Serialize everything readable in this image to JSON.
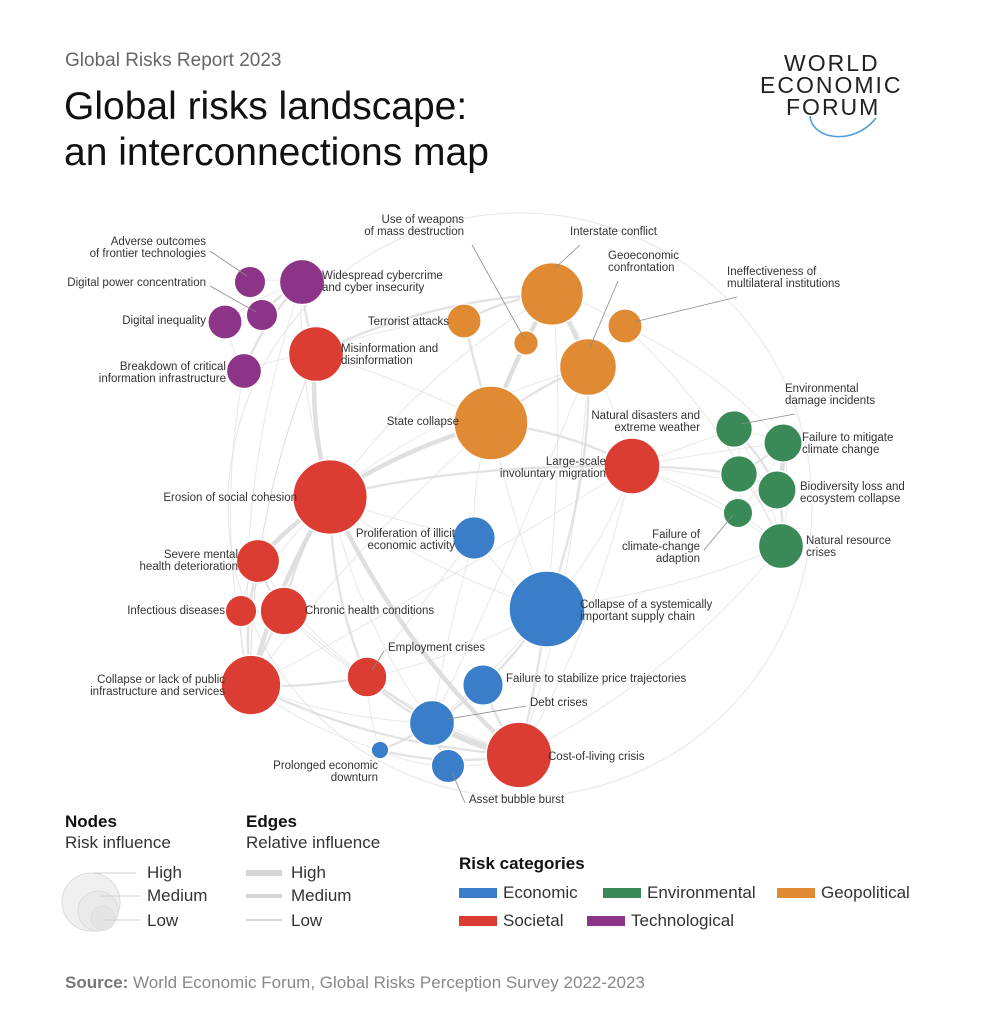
{
  "header": {
    "report_name": "Global Risks Report 2023",
    "title_line1": "Global risks landscape:",
    "title_line2": "an interconnections map"
  },
  "logo": {
    "line1": "WORLD",
    "line2": "ECONOMIC",
    "line3": "FORUM"
  },
  "colors": {
    "Economic": "#3a7dc9",
    "Environmental": "#3a8a58",
    "Geopolitical": "#e08a33",
    "Societal": "#dc3d33",
    "Technological": "#8c3487",
    "edge": "#d9d9d9"
  },
  "nodes": [
    {
      "id": "adverse",
      "label": [
        "Adverse outcomes",
        "of frontier technologies"
      ],
      "category": "Technological",
      "influence": 0.12
    },
    {
      "id": "cyber",
      "label": [
        "Widespread cybercrime",
        "and cyber insecurity"
      ],
      "category": "Technological",
      "influence": 0.3
    },
    {
      "id": "digpower",
      "label": [
        "Digital power concentration"
      ],
      "category": "Technological",
      "influence": 0.12
    },
    {
      "id": "diginequality",
      "label": [
        "Digital inequality"
      ],
      "category": "Technological",
      "influence": 0.15
    },
    {
      "id": "breakdown",
      "label": [
        "Breakdown of critical",
        "information infrastructure"
      ],
      "category": "Technological",
      "influence": 0.16
    },
    {
      "id": "misinfo",
      "label": [
        "Misinformation and",
        "disinformation"
      ],
      "category": "Societal",
      "influence": 0.48
    },
    {
      "id": "wmd",
      "label": [
        "Use of weapons",
        "of mass destruction"
      ],
      "category": "Geopolitical",
      "influence": 0.06
    },
    {
      "id": "interstate",
      "label": [
        "Interstate conflict"
      ],
      "category": "Geopolitical",
      "influence": 0.65
    },
    {
      "id": "geoeco",
      "label": [
        "Geoeconomic",
        "confrontation"
      ],
      "category": "Geopolitical",
      "influence": 0.52
    },
    {
      "id": "terrorist",
      "label": [
        "Terrorist attacks"
      ],
      "category": "Geopolitical",
      "influence": 0.15
    },
    {
      "id": "multilateral",
      "label": [
        "Ineffectiveness of",
        "multilateral institutions"
      ],
      "category": "Geopolitical",
      "influence": 0.15
    },
    {
      "id": "statecollapse",
      "label": [
        "State collapse"
      ],
      "category": "Geopolitical",
      "influence": 0.94
    },
    {
      "id": "migration",
      "label": [
        "Large-scale",
        "involuntary migration"
      ],
      "category": "Societal",
      "influence": 0.5
    },
    {
      "id": "envdamage",
      "label": [
        "Environmental",
        "damage incidents"
      ],
      "category": "Environmental",
      "influence": 0.18
    },
    {
      "id": "natdisasters",
      "label": [
        "Natural disasters and",
        "extreme weather"
      ],
      "category": "Environmental",
      "influence": 0.18
    },
    {
      "id": "climfail",
      "label": [
        "Failure to mitigate",
        "climate change"
      ],
      "category": "Environmental",
      "influence": 0.2
    },
    {
      "id": "biodiversity",
      "label": [
        "Biodiversity loss and",
        "ecosystem collapse"
      ],
      "category": "Environmental",
      "influence": 0.2
    },
    {
      "id": "adaptfail",
      "label": [
        "Failure of",
        "climate-change",
        "adaption"
      ],
      "category": "Environmental",
      "influence": 0.1
    },
    {
      "id": "natres",
      "label": [
        "Natural resource",
        "crises"
      ],
      "category": "Environmental",
      "influence": 0.3
    },
    {
      "id": "cohesion",
      "label": [
        "Erosion of social cohesion"
      ],
      "category": "Societal",
      "influence": 0.96
    },
    {
      "id": "illicit",
      "label": [
        "Proliferation of illicit",
        "economic activity"
      ],
      "category": "Economic",
      "influence": 0.26
    },
    {
      "id": "mental",
      "label": [
        "Severe mental",
        "health deterioration"
      ],
      "category": "Societal",
      "influence": 0.27
    },
    {
      "id": "infectious",
      "label": [
        "Infectious diseases"
      ],
      "category": "Societal",
      "influence": 0.12
    },
    {
      "id": "chronic",
      "label": [
        "Chronic health conditions"
      ],
      "category": "Societal",
      "influence": 0.34
    },
    {
      "id": "supplychain",
      "label": [
        "Collapse of a systemically",
        "important supply chain"
      ],
      "category": "Economic",
      "influence": 1.0
    },
    {
      "id": "employment",
      "label": [
        "Employment crises"
      ],
      "category": "Societal",
      "influence": 0.22
    },
    {
      "id": "publicinfra",
      "label": [
        "Collapse or lack of public",
        "infrastructure and services"
      ],
      "category": "Societal",
      "influence": 0.58
    },
    {
      "id": "price",
      "label": [
        "Failure to stabilize price trajectories"
      ],
      "category": "Economic",
      "influence": 0.23
    },
    {
      "id": "debt",
      "label": [
        "Debt crises"
      ],
      "category": "Economic",
      "influence": 0.3
    },
    {
      "id": "prolonged",
      "label": [
        "Prolonged economic",
        "downturn"
      ],
      "category": "Economic",
      "influence": 0.02
    },
    {
      "id": "costofliving",
      "label": [
        "Cost-of-living crisis"
      ],
      "category": "Societal",
      "influence": 0.72
    },
    {
      "id": "assetbubble",
      "label": [
        "Asset bubble burst"
      ],
      "category": "Economic",
      "influence": 0.14
    }
  ],
  "edges": [
    [
      "cohesion",
      "misinfo",
      3
    ],
    [
      "cohesion",
      "statecollapse",
      3
    ],
    [
      "cohesion",
      "mental",
      3
    ],
    [
      "cohesion",
      "chronic",
      2
    ],
    [
      "cohesion",
      "publicinfra",
      3
    ],
    [
      "cohesion",
      "costofliving",
      3
    ],
    [
      "cohesion",
      "employment",
      2
    ],
    [
      "cohesion",
      "migration",
      2
    ],
    [
      "cohesion",
      "interstate",
      1
    ],
    [
      "cohesion",
      "illicit",
      1
    ],
    [
      "cohesion",
      "debt",
      1
    ],
    [
      "cohesion",
      "cyber",
      1
    ],
    [
      "cohesion",
      "infectious",
      1
    ],
    [
      "cohesion",
      "supplychain",
      1
    ],
    [
      "cohesion",
      "geoeco",
      1
    ],
    [
      "statecollapse",
      "interstate",
      3
    ],
    [
      "statecollapse",
      "geoeco",
      2
    ],
    [
      "statecollapse",
      "migration",
      2
    ],
    [
      "statecollapse",
      "terrorist",
      2
    ],
    [
      "statecollapse",
      "illicit",
      1
    ],
    [
      "statecollapse",
      "supplychain",
      1
    ],
    [
      "statecollapse",
      "misinfo",
      1
    ],
    [
      "statecollapse",
      "wmd",
      1
    ],
    [
      "statecollapse",
      "publicinfra",
      1
    ],
    [
      "interstate",
      "geoeco",
      3
    ],
    [
      "interstate",
      "terrorist",
      2
    ],
    [
      "interstate",
      "wmd",
      1
    ],
    [
      "interstate",
      "multilateral",
      1
    ],
    [
      "interstate",
      "misinfo",
      2
    ],
    [
      "interstate",
      "migration",
      1
    ],
    [
      "interstate",
      "supplychain",
      1
    ],
    [
      "geoeco",
      "supplychain",
      2
    ],
    [
      "geoeco",
      "multilateral",
      1
    ],
    [
      "geoeco",
      "costofliving",
      1
    ],
    [
      "geoeco",
      "debt",
      1
    ],
    [
      "multilateral",
      "natres",
      1
    ],
    [
      "multilateral",
      "climfail",
      1
    ],
    [
      "misinfo",
      "cyber",
      2
    ],
    [
      "misinfo",
      "terrorist",
      1
    ],
    [
      "misinfo",
      "breakdown",
      1
    ],
    [
      "misinfo",
      "publicinfra",
      1
    ],
    [
      "cyber",
      "adverse",
      1
    ],
    [
      "cyber",
      "digpower",
      2
    ],
    [
      "cyber",
      "diginequality",
      1
    ],
    [
      "cyber",
      "breakdown",
      2
    ],
    [
      "adverse",
      "digpower",
      1
    ],
    [
      "digpower",
      "diginequality",
      1
    ],
    [
      "diginequality",
      "breakdown",
      1
    ],
    [
      "breakdown",
      "publicinfra",
      1
    ],
    [
      "migration",
      "natdisasters",
      2
    ],
    [
      "migration",
      "envdamage",
      1
    ],
    [
      "migration",
      "natres",
      1
    ],
    [
      "migration",
      "climfail",
      1
    ],
    [
      "migration",
      "biodiversity",
      1
    ],
    [
      "migration",
      "adaptfail",
      1
    ],
    [
      "migration",
      "publicinfra",
      1
    ],
    [
      "migration",
      "costofliving",
      1
    ],
    [
      "natdisasters",
      "climfail",
      2
    ],
    [
      "natdisasters",
      "biodiversity",
      2
    ],
    [
      "natdisasters",
      "adaptfail",
      1
    ],
    [
      "natdisasters",
      "natres",
      1
    ],
    [
      "envdamage",
      "climfail",
      1
    ],
    [
      "envdamage",
      "biodiversity",
      2
    ],
    [
      "envdamage",
      "natres",
      1
    ],
    [
      "envdamage",
      "natdisasters",
      1
    ],
    [
      "climfail",
      "biodiversity",
      3
    ],
    [
      "climfail",
      "adaptfail",
      1
    ],
    [
      "climfail",
      "natres",
      1
    ],
    [
      "biodiversity",
      "natres",
      2
    ],
    [
      "biodiversity",
      "adaptfail",
      1
    ],
    [
      "adaptfail",
      "natres",
      1
    ],
    [
      "natres",
      "supplychain",
      1
    ],
    [
      "natres",
      "costofliving",
      1
    ],
    [
      "supplychain",
      "costofliving",
      2
    ],
    [
      "supplychain",
      "price",
      2
    ],
    [
      "supplychain",
      "debt",
      1
    ],
    [
      "supplychain",
      "employment",
      1
    ],
    [
      "supplychain",
      "illicit",
      1
    ],
    [
      "supplychain",
      "migration",
      1
    ],
    [
      "costofliving",
      "price",
      2
    ],
    [
      "costofliving",
      "debt",
      3
    ],
    [
      "costofliving",
      "employment",
      2
    ],
    [
      "costofliving",
      "publicinfra",
      2
    ],
    [
      "costofliving",
      "prolonged",
      2
    ],
    [
      "costofliving",
      "assetbubble",
      1
    ],
    [
      "costofliving",
      "chronic",
      1
    ],
    [
      "debt",
      "price",
      2
    ],
    [
      "debt",
      "assetbubble",
      2
    ],
    [
      "debt",
      "prolonged",
      2
    ],
    [
      "debt",
      "employment",
      2
    ],
    [
      "debt",
      "publicinfra",
      1
    ],
    [
      "employment",
      "publicinfra",
      2
    ],
    [
      "employment",
      "prolonged",
      1
    ],
    [
      "employment",
      "mental",
      1
    ],
    [
      "employment",
      "chronic",
      1
    ],
    [
      "prolonged",
      "publicinfra",
      1
    ],
    [
      "prolonged",
      "assetbubble",
      1
    ],
    [
      "illicit",
      "employment",
      1
    ],
    [
      "illicit",
      "debt",
      1
    ],
    [
      "mental",
      "chronic",
      2
    ],
    [
      "mental",
      "infectious",
      1
    ],
    [
      "mental",
      "publicinfra",
      2
    ],
    [
      "chronic",
      "infectious",
      2
    ],
    [
      "chronic",
      "publicinfra",
      2
    ],
    [
      "infectious",
      "publicinfra",
      1
    ],
    [
      "publicinfra",
      "misinfo",
      1
    ],
    [
      "publicinfra",
      "cyber",
      1
    ]
  ],
  "legend": {
    "nodes_title": "Nodes",
    "nodes_subtitle": "Risk influence",
    "node_levels": [
      "High",
      "Medium",
      "Low"
    ],
    "edges_title": "Edges",
    "edges_subtitle": "Relative influence",
    "edge_levels": [
      "High",
      "Medium",
      "Low"
    ],
    "categories_title": "Risk categories",
    "categories": [
      "Economic",
      "Environmental",
      "Geopolitical",
      "Societal",
      "Technological"
    ]
  },
  "source": {
    "label": "Source:",
    "text": "World Economic Forum, Global Risks Perception Survey 2022-2023"
  }
}
